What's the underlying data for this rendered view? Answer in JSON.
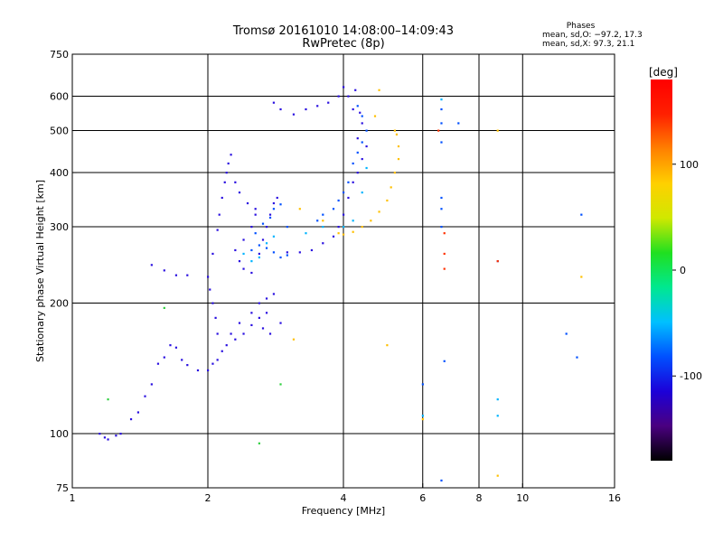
{
  "header": {
    "title_line1": "Tromsø 20161010 14:08:00–14:09:43",
    "title_line2": "RwPretec (8p)"
  },
  "phase_legend": {
    "heading": "Phases",
    "line_o": "mean, sd,O: −97.2, 17.3",
    "line_x": "mean, sd,X:  97.3, 21.1"
  },
  "chart_data": {
    "type": "scatter",
    "xlabel": "Frequency [MHz]",
    "ylabel": "Stationary phase Virtual Height [km]",
    "x_scale": "log",
    "y_scale": "log",
    "xlim": [
      1,
      16
    ],
    "ylim": [
      75,
      750
    ],
    "x_ticks": [
      1,
      2,
      4,
      6,
      8,
      10,
      16
    ],
    "y_ticks": [
      75,
      100,
      200,
      300,
      400,
      500,
      600,
      750
    ],
    "x_gridlines": [
      2,
      4,
      6,
      8,
      10
    ],
    "y_gridlines": [
      100,
      200,
      300,
      400,
      500,
      600
    ],
    "grid": true,
    "colorbar": {
      "label": "[deg]",
      "range": [
        -180,
        180
      ],
      "ticks": [
        100,
        0,
        -100
      ],
      "colors": [
        "#000000",
        "#4a0080",
        "#1c00d8",
        "#0050ff",
        "#00c0ff",
        "#00e890",
        "#20e020",
        "#d0e800",
        "#ffd000",
        "#ff8000",
        "#ff2000",
        "#ff0000"
      ]
    },
    "series": [
      {
        "phase_deg": -115,
        "color": "#2a10e0",
        "points": [
          [
            1.15,
            100
          ],
          [
            1.18,
            98
          ],
          [
            1.2,
            97
          ],
          [
            1.25,
            99
          ],
          [
            1.28,
            100
          ],
          [
            1.35,
            108
          ],
          [
            1.4,
            112
          ],
          [
            1.45,
            122
          ],
          [
            1.5,
            130
          ],
          [
            1.55,
            145
          ],
          [
            1.6,
            150
          ],
          [
            1.65,
            160
          ],
          [
            1.7,
            158
          ],
          [
            1.75,
            148
          ],
          [
            1.8,
            144
          ],
          [
            1.9,
            140
          ],
          [
            2.0,
            140
          ],
          [
            2.05,
            145
          ],
          [
            2.1,
            148
          ],
          [
            2.15,
            155
          ],
          [
            2.2,
            160
          ],
          [
            2.3,
            165
          ],
          [
            2.4,
            170
          ],
          [
            2.5,
            178
          ],
          [
            2.6,
            185
          ],
          [
            2.7,
            190
          ],
          [
            1.5,
            245
          ],
          [
            1.6,
            238
          ],
          [
            1.7,
            232
          ],
          [
            1.8,
            232
          ],
          [
            2.05,
            260
          ],
          [
            2.1,
            295
          ],
          [
            2.12,
            320
          ],
          [
            2.15,
            350
          ],
          [
            2.18,
            380
          ],
          [
            2.2,
            400
          ],
          [
            2.0,
            230
          ],
          [
            2.02,
            215
          ],
          [
            2.05,
            200
          ],
          [
            2.08,
            185
          ],
          [
            2.1,
            170
          ],
          [
            2.25,
            170
          ],
          [
            2.35,
            180
          ],
          [
            2.5,
            190
          ],
          [
            2.6,
            200
          ],
          [
            2.7,
            205
          ],
          [
            2.8,
            210
          ],
          [
            2.6,
            260
          ],
          [
            2.65,
            280
          ],
          [
            2.7,
            300
          ],
          [
            2.75,
            320
          ],
          [
            2.8,
            340
          ],
          [
            2.85,
            350
          ],
          [
            2.4,
            280
          ],
          [
            2.5,
            300
          ],
          [
            2.55,
            320
          ],
          [
            2.3,
            265
          ],
          [
            2.35,
            250
          ],
          [
            2.4,
            240
          ],
          [
            2.5,
            235
          ],
          [
            3.0,
            262
          ],
          [
            3.2,
            262
          ],
          [
            3.4,
            265
          ],
          [
            3.6,
            275
          ],
          [
            3.8,
            285
          ],
          [
            3.9,
            300
          ],
          [
            4.0,
            320
          ],
          [
            4.1,
            350
          ],
          [
            4.2,
            380
          ],
          [
            4.3,
            400
          ],
          [
            4.4,
            430
          ],
          [
            4.5,
            460
          ],
          [
            4.2,
            560
          ],
          [
            4.1,
            600
          ],
          [
            4.0,
            630
          ],
          [
            3.9,
            600
          ],
          [
            3.7,
            580
          ],
          [
            3.5,
            570
          ],
          [
            3.3,
            560
          ],
          [
            3.1,
            545
          ],
          [
            2.9,
            560
          ],
          [
            2.8,
            580
          ],
          [
            4.3,
            480
          ],
          [
            4.4,
            520
          ],
          [
            4.35,
            550
          ],
          [
            4.25,
            620
          ],
          [
            2.22,
            420
          ],
          [
            2.25,
            440
          ],
          [
            2.3,
            380
          ],
          [
            2.35,
            360
          ],
          [
            2.45,
            340
          ],
          [
            2.55,
            330
          ],
          [
            2.9,
            180
          ],
          [
            2.75,
            170
          ],
          [
            2.65,
            175
          ]
        ]
      },
      {
        "phase_deg": -95,
        "color": "#0050ff",
        "points": [
          [
            2.5,
            265
          ],
          [
            2.6,
            272
          ],
          [
            2.7,
            268
          ],
          [
            2.8,
            262
          ],
          [
            2.9,
            255
          ],
          [
            3.0,
            258
          ],
          [
            2.55,
            290
          ],
          [
            2.65,
            305
          ],
          [
            2.75,
            315
          ],
          [
            2.8,
            330
          ],
          [
            2.9,
            338
          ],
          [
            3.0,
            300
          ],
          [
            3.5,
            310
          ],
          [
            3.6,
            320
          ],
          [
            3.8,
            330
          ],
          [
            3.9,
            345
          ],
          [
            4.0,
            360
          ],
          [
            4.1,
            380
          ],
          [
            4.2,
            420
          ],
          [
            4.3,
            445
          ],
          [
            4.4,
            470
          ],
          [
            4.5,
            500
          ],
          [
            4.4,
            540
          ],
          [
            4.3,
            570
          ],
          [
            6.6,
            350
          ],
          [
            6.6,
            330
          ],
          [
            6.6,
            300
          ],
          [
            6.6,
            470
          ],
          [
            6.6,
            520
          ],
          [
            6.6,
            560
          ],
          [
            7.2,
            520
          ],
          [
            6.7,
            147
          ],
          [
            6.0,
            130
          ],
          [
            6.6,
            78
          ],
          [
            12.5,
            170
          ],
          [
            13.2,
            150
          ],
          [
            13.5,
            320
          ],
          [
            8.8,
            250
          ]
        ]
      },
      {
        "phase_deg": -60,
        "color": "#00b4ff",
        "points": [
          [
            2.4,
            260
          ],
          [
            2.5,
            250
          ],
          [
            2.6,
            255
          ],
          [
            2.7,
            275
          ],
          [
            2.8,
            285
          ],
          [
            3.3,
            290
          ],
          [
            3.6,
            300
          ],
          [
            4.0,
            300
          ],
          [
            4.2,
            310
          ],
          [
            4.4,
            360
          ],
          [
            4.5,
            410
          ],
          [
            6.0,
            110
          ],
          [
            8.8,
            110
          ],
          [
            6.6,
            590
          ],
          [
            8.8,
            120
          ]
        ]
      },
      {
        "phase_deg": 120,
        "color": "#ffc000",
        "points": [
          [
            3.9,
            290
          ],
          [
            4.0,
            288
          ],
          [
            4.2,
            292
          ],
          [
            4.4,
            300
          ],
          [
            4.6,
            310
          ],
          [
            4.8,
            325
          ],
          [
            5.0,
            345
          ],
          [
            5.1,
            370
          ],
          [
            5.2,
            400
          ],
          [
            5.3,
            430
          ],
          [
            5.3,
            460
          ],
          [
            5.25,
            490
          ],
          [
            5.2,
            500
          ],
          [
            4.7,
            540
          ],
          [
            4.8,
            620
          ],
          [
            3.6,
            310
          ],
          [
            3.2,
            330
          ],
          [
            3.1,
            165
          ],
          [
            5.0,
            160
          ],
          [
            8.8,
            80
          ],
          [
            8.8,
            500
          ],
          [
            13.5,
            230
          ],
          [
            6.0,
            108
          ]
        ]
      },
      {
        "phase_deg": 165,
        "color": "#ff3000",
        "points": [
          [
            6.7,
            290
          ],
          [
            6.7,
            260
          ],
          [
            6.7,
            240
          ],
          [
            6.5,
            500
          ],
          [
            8.8,
            250
          ]
        ]
      },
      {
        "phase_deg": 30,
        "color": "#30d040",
        "points": [
          [
            1.2,
            120
          ],
          [
            1.6,
            195
          ],
          [
            2.9,
            130
          ],
          [
            2.6,
            95
          ]
        ]
      }
    ]
  }
}
